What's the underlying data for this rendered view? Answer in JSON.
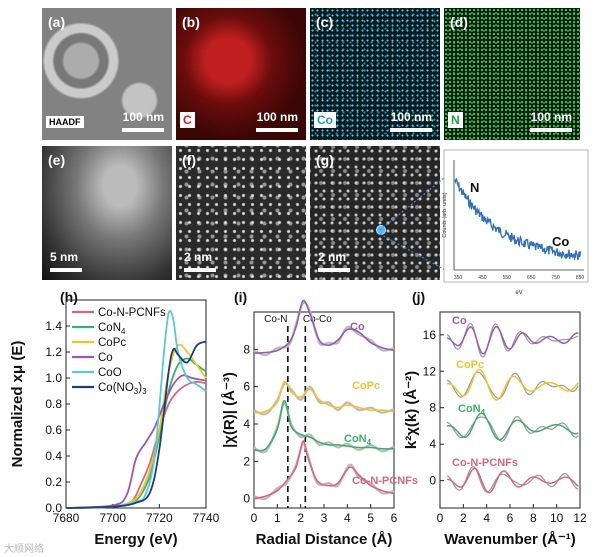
{
  "top_row": {
    "a": {
      "label": "(a)",
      "tag": "HAADF",
      "scale": "100 nm"
    },
    "b": {
      "label": "(b)",
      "element": "C",
      "scale": "100 nm"
    },
    "c": {
      "label": "(c)",
      "element": "Co",
      "scale": "100 nm"
    },
    "d": {
      "label": "(d)",
      "element": "N",
      "scale": "100 nm"
    }
  },
  "middle_row": {
    "e": {
      "label": "(e)",
      "scale": "5 nm"
    },
    "f": {
      "label": "(f)",
      "scale": "2 nm"
    },
    "g": {
      "label": "(g)",
      "scale": "2 nm"
    }
  },
  "eels": {
    "ylabel": "Counts (arb. units)",
    "xlabel": "eV",
    "ticks": [
      "350",
      "450",
      "550",
      "650",
      "750",
      "850"
    ],
    "peak_n": "N",
    "peak_co": "Co"
  },
  "colors": {
    "co_n_pcnfs": "#d9677a",
    "con4": "#3fae6a",
    "copc": "#f2c230",
    "co": "#9b59b6",
    "coo": "#5bc8d8",
    "cono3": "#1d3f73",
    "eels_line": "#2e6fb8"
  },
  "chart_data": [
    {
      "type": "line",
      "panel": "(h)",
      "xlabel": "Energy (eV)",
      "ylabel": "Normalized xμ (E)",
      "xlim": [
        7680,
        7740
      ],
      "ylim": [
        0,
        1.6
      ],
      "xticks": [
        "7680",
        "7700",
        "7720",
        "7740"
      ],
      "yticks": [
        "0.0",
        "0.2",
        "0.4",
        "0.6",
        "0.8",
        "1.0",
        "1.2",
        "1.4"
      ],
      "legend": [
        "Co-N-PCNFs",
        "CoN4",
        "CoPc",
        "Co",
        "CoO",
        "Co(NO3)3"
      ],
      "series": [
        {
          "name": "Co-N-PCNFs",
          "x": [
            7680,
            7700,
            7708,
            7712,
            7716,
            7720,
            7724,
            7728,
            7732,
            7736,
            7740
          ],
          "values": [
            0,
            0.01,
            0.05,
            0.18,
            0.35,
            0.6,
            0.8,
            0.9,
            0.95,
            0.97,
            0.96
          ]
        },
        {
          "name": "CoN4",
          "x": [
            7680,
            7700,
            7708,
            7712,
            7716,
            7720,
            7724,
            7728,
            7732,
            7736,
            7740
          ],
          "values": [
            0,
            0.01,
            0.04,
            0.1,
            0.25,
            0.55,
            0.9,
            1.1,
            1.15,
            1.1,
            1.05
          ]
        },
        {
          "name": "CoPc",
          "x": [
            7680,
            7700,
            7708,
            7712,
            7716,
            7720,
            7724,
            7728,
            7732,
            7736,
            7740
          ],
          "values": [
            0,
            0.01,
            0.05,
            0.12,
            0.3,
            0.6,
            1.05,
            1.25,
            1.2,
            1.1,
            1.0
          ]
        },
        {
          "name": "Co",
          "x": [
            7680,
            7700,
            7706,
            7710,
            7714,
            7718,
            7722,
            7726,
            7730,
            7734,
            7740
          ],
          "values": [
            0,
            0.02,
            0.1,
            0.38,
            0.5,
            0.62,
            0.8,
            0.95,
            1.02,
            1.0,
            0.98
          ]
        },
        {
          "name": "CoO",
          "x": [
            7680,
            7700,
            7710,
            7714,
            7718,
            7722,
            7724,
            7726,
            7728,
            7732,
            7736,
            7740
          ],
          "values": [
            0,
            0.01,
            0.05,
            0.1,
            0.4,
            1.2,
            1.5,
            1.45,
            1.2,
            1.0,
            0.95,
            0.9
          ]
        },
        {
          "name": "Co(NO3)3",
          "x": [
            7680,
            7700,
            7710,
            7716,
            7720,
            7724,
            7726,
            7728,
            7732,
            7736,
            7740
          ],
          "values": [
            0,
            0.01,
            0.04,
            0.12,
            0.45,
            1.05,
            1.22,
            1.18,
            1.12,
            1.25,
            1.28
          ]
        }
      ]
    },
    {
      "type": "line",
      "panel": "(i)",
      "xlabel": "Radial Distance (Å)",
      "ylabel": "|χ(R)| (Å⁻³)",
      "xlim": [
        0,
        6
      ],
      "ylim": [
        -0.5,
        10
      ],
      "xticks": [
        "0",
        "1",
        "2",
        "3",
        "4",
        "5",
        "6"
      ],
      "yticks": [
        "0",
        "2",
        "4",
        "6",
        "8"
      ],
      "guides": [
        {
          "x": 1.45,
          "label": "Co-N"
        },
        {
          "x": 2.2,
          "label": "Co-Co"
        }
      ],
      "series": [
        {
          "name": "Co",
          "offset": 7.8,
          "x": [
            0,
            0.5,
            1,
            1.5,
            1.8,
            2.1,
            2.4,
            2.8,
            3.2,
            3.6,
            4.0,
            4.5,
            5,
            5.5,
            6
          ],
          "values": [
            0,
            0.02,
            0.1,
            0.4,
            1.0,
            2.0,
            1.5,
            0.5,
            0.3,
            0.5,
            0.9,
            0.8,
            0.4,
            0.2,
            0.1
          ]
        },
        {
          "name": "CoPc",
          "offset": 4.6,
          "x": [
            0,
            0.5,
            1,
            1.3,
            1.6,
            2.0,
            2.4,
            2.8,
            3.2,
            3.6,
            4.0,
            4.5,
            5,
            5.5,
            6
          ],
          "values": [
            0,
            0.05,
            0.4,
            1.2,
            0.8,
            0.6,
            0.9,
            0.5,
            0.3,
            0.2,
            0.3,
            0.2,
            0.1,
            0.1,
            0.05
          ]
        },
        {
          "name": "CoN4",
          "offset": 2.6,
          "x": [
            0,
            0.5,
            1,
            1.3,
            1.6,
            2.0,
            2.4,
            2.8,
            3.2,
            3.6,
            4.0,
            4.5,
            5,
            5.5,
            6
          ],
          "values": [
            0,
            0.05,
            0.8,
            1.9,
            0.9,
            0.6,
            0.5,
            0.3,
            0.2,
            0.2,
            0.15,
            0.1,
            0.1,
            0.05,
            0.05
          ]
        },
        {
          "name": "Co-N-PCNFs",
          "offset": 0.0,
          "x": [
            0,
            0.5,
            1,
            1.4,
            1.8,
            2.1,
            2.3,
            2.7,
            3.2,
            3.6,
            4.1,
            4.5,
            5,
            5.5,
            6
          ],
          "values": [
            0,
            0.1,
            0.3,
            0.7,
            1.2,
            2.2,
            1.6,
            0.7,
            0.5,
            0.6,
            1.2,
            0.9,
            0.5,
            0.3,
            0.2
          ]
        }
      ],
      "series_labels": [
        "Co",
        "CoPc",
        "CoN4",
        "Co-N-PCNFs"
      ]
    },
    {
      "type": "line",
      "panel": "(j)",
      "xlabel": "Wavenumber (Å⁻¹)",
      "ylabel": "k²χ(k) (Å⁻²)",
      "xlim": [
        0,
        12
      ],
      "ylim": [
        -3,
        18.5
      ],
      "xticks": [
        "0",
        "2",
        "4",
        "6",
        "8",
        "10",
        "12"
      ],
      "yticks": [
        "0",
        "4",
        "8",
        "12",
        "16"
      ],
      "series": [
        {
          "name": "Co",
          "offset": 15.5,
          "amp": 1.6,
          "freq": 1.25
        },
        {
          "name": "CoPc",
          "offset": 10.4,
          "amp": 1.8,
          "freq": 0.95
        },
        {
          "name": "CoN4",
          "offset": 5.8,
          "amp": 1.6,
          "freq": 0.9
        },
        {
          "name": "Co-N-PCNFs",
          "offset": 0.0,
          "amp": 1.4,
          "freq": 1.1
        }
      ],
      "series_labels": [
        "Co",
        "CoPc",
        "CoN4",
        "Co-N-PCNFs"
      ]
    }
  ],
  "watermark": "大顺网络"
}
